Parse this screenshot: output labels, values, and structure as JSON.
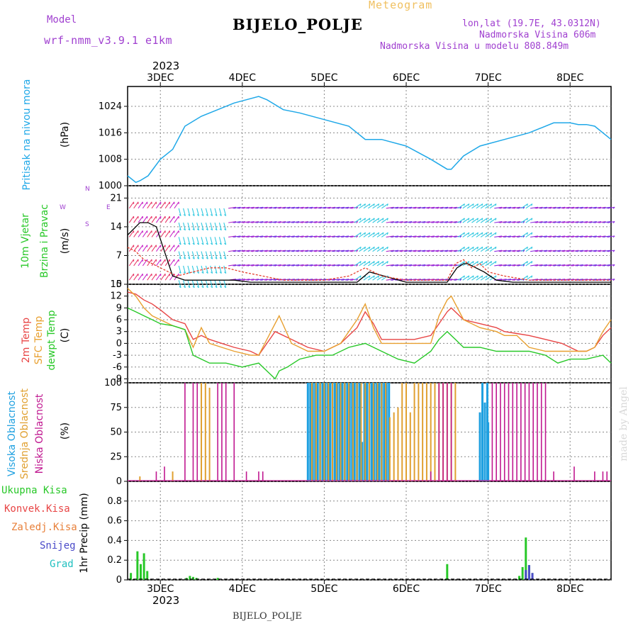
{
  "header": {
    "meteogram_label": "Meteogram",
    "model_label": "Model",
    "model_name": "wrf-nmm_v3.9.1  e1km",
    "title": "BIJELO_POLJE",
    "lonlat": "lon,lat (19.7E, 43.0312N)",
    "altitude": "Nadmorska Visina 606m",
    "model_altitude": "Nadmorska Visina u modelu 808.849m",
    "footer_station": "BIJELO_POLJE",
    "credit": "made by Angel"
  },
  "time_axis": {
    "year": "2023",
    "labels": [
      "3DEC",
      "4DEC",
      "5DEC",
      "6DEC",
      "7DEC",
      "8DEC"
    ]
  },
  "panel_labels": {
    "pressure": [
      "Pritisak na nivou mora",
      "(hPa)"
    ],
    "wind": [
      "10m Vjetar",
      "Brzina i Pravac",
      "(m/s)"
    ],
    "wind_compass": [
      "N",
      "S",
      "W",
      "E"
    ],
    "temp": [
      "2m Temp",
      "SFC Temp",
      "dewpt Temp",
      "(C)"
    ],
    "cloud": [
      "Visoka Oblacnost",
      "Srednja Oblacnost",
      "Niska Oblacnost",
      "(%)"
    ],
    "precip": [
      "Ukupna Kisa",
      "Konvek.Kisa",
      "Zaledj.Kisa",
      "Snijeg",
      "Grad",
      "1hr Precip (mm)"
    ]
  },
  "colors": {
    "pressure": "#1fa8e8",
    "gust": "#000000",
    "wind_speed": "#e6402e",
    "temp2m": "#e84545",
    "sfc": "#e8a030",
    "dewpt": "#28c828",
    "high_cloud": "#1ea0e0",
    "mid_cloud": "#e0a030",
    "low_cloud": "#c01890",
    "precip_total": "#28c828",
    "precip_snow": "#4a4ac8"
  },
  "chart_data": [
    {
      "type": "line",
      "title": "Pritisak na nivou mora",
      "ylabel": "(hPa)",
      "ylim": [
        1000,
        1030
      ],
      "yticks": [
        "1000",
        "1008",
        "1016",
        "1024"
      ],
      "xlim_days": [
        2.6,
        8.5
      ],
      "x_days": [
        2.6,
        2.7,
        2.75,
        2.85,
        3.0,
        3.15,
        3.3,
        3.5,
        3.7,
        3.9,
        4.05,
        4.2,
        4.3,
        4.5,
        4.7,
        5.0,
        5.3,
        5.5,
        5.7,
        6.0,
        6.3,
        6.5,
        6.55,
        6.7,
        6.9,
        7.2,
        7.5,
        7.8,
        8.0,
        8.1,
        8.2,
        8.3,
        8.5
      ],
      "y": [
        1003,
        1001,
        1001.5,
        1003,
        1008,
        1011,
        1018,
        1021,
        1023,
        1025,
        1026,
        1027,
        1026,
        1023,
        1022,
        1020,
        1018,
        1014,
        1014,
        1012,
        1008,
        1005,
        1005,
        1009,
        1012,
        1014,
        1016,
        1019,
        1019,
        1018.5,
        1018.5,
        1018,
        1014
      ]
    },
    {
      "type": "line",
      "title": "10m Vjetar Brzina i Pravac",
      "ylabel": "(m/s)",
      "ylim": [
        0,
        24
      ],
      "yticks": [
        "0",
        "7",
        "14",
        "21"
      ],
      "series": [
        {
          "name": "gust",
          "x_days": [
            2.6,
            2.7,
            2.75,
            2.85,
            2.95,
            3.05,
            3.15,
            3.3,
            3.5,
            3.7,
            3.9,
            4.1,
            4.5,
            5.0,
            5.4,
            5.55,
            6.0,
            6.3,
            6.5,
            6.55,
            6.62,
            6.7,
            6.75,
            6.85,
            6.95,
            7.1,
            7.3,
            7.5,
            8.0,
            8.5
          ],
          "y": [
            12,
            14,
            15,
            15,
            14,
            8,
            2,
            1,
            1,
            1,
            1,
            0.5,
            0.5,
            0.5,
            0.5,
            3,
            0.5,
            0.5,
            0.5,
            2,
            4,
            5,
            5,
            4,
            3,
            1,
            0.5,
            0.5,
            0.5,
            0.5
          ]
        },
        {
          "name": "speed",
          "x_days": [
            2.6,
            2.7,
            2.8,
            2.9,
            3.0,
            3.2,
            3.4,
            3.6,
            3.8,
            4.0,
            4.5,
            5.0,
            5.3,
            5.5,
            5.7,
            6.0,
            6.3,
            6.5,
            6.6,
            6.7,
            6.8,
            6.9,
            7.0,
            7.2,
            7.5,
            8.0,
            8.5
          ],
          "y": [
            9,
            8,
            6,
            5,
            4,
            2,
            3,
            4,
            4,
            3,
            1,
            1,
            2,
            4,
            2,
            1,
            1,
            1,
            5,
            6,
            4,
            5,
            3,
            2,
            1,
            1,
            1
          ]
        }
      ]
    },
    {
      "type": "line",
      "title": "2m Temp / SFC Temp / dewpt Temp",
      "ylabel": "(C)",
      "ylim": [
        -10,
        15
      ],
      "yticks": [
        "-9",
        "-6",
        "-3",
        "0",
        "3",
        "6",
        "9",
        "12",
        "15"
      ],
      "series": [
        {
          "name": "2m Temp",
          "x_days": [
            2.6,
            2.7,
            2.8,
            2.9,
            3.0,
            3.15,
            3.3,
            3.4,
            3.5,
            3.6,
            3.75,
            3.9,
            4.1,
            4.2,
            4.3,
            4.4,
            4.6,
            4.8,
            5.0,
            5.2,
            5.4,
            5.5,
            5.6,
            5.7,
            5.9,
            6.1,
            6.3,
            6.4,
            6.5,
            6.55,
            6.7,
            6.9,
            7.1,
            7.2,
            7.35,
            7.5,
            7.7,
            7.9,
            8.1,
            8.2,
            8.3,
            8.4,
            8.5
          ],
          "y": [
            13,
            12.5,
            11,
            10,
            8.5,
            6,
            5,
            1,
            2,
            1,
            0,
            -1,
            -2,
            -3,
            0,
            3,
            1,
            -1,
            -2,
            0,
            4,
            8,
            5,
            1,
            1,
            1,
            2,
            5,
            8,
            9,
            6,
            5,
            4,
            3,
            2.5,
            2,
            1,
            0,
            -2,
            -2,
            -1,
            2,
            4
          ]
        },
        {
          "name": "SFC Temp",
          "x_days": [
            2.6,
            2.7,
            2.8,
            2.9,
            3.0,
            3.15,
            3.3,
            3.4,
            3.5,
            3.6,
            3.75,
            3.9,
            4.1,
            4.2,
            4.3,
            4.45,
            4.6,
            4.8,
            5.0,
            5.2,
            5.4,
            5.5,
            5.6,
            5.7,
            5.9,
            6.1,
            6.3,
            6.4,
            6.5,
            6.55,
            6.7,
            6.9,
            7.1,
            7.2,
            7.35,
            7.5,
            7.7,
            7.9,
            8.1,
            8.2,
            8.3,
            8.4,
            8.5
          ],
          "y": [
            14,
            12,
            9,
            7,
            6,
            4.5,
            3.5,
            -1,
            4,
            0,
            -1,
            -2,
            -3,
            -3,
            1,
            7,
            0,
            -2,
            -2,
            0,
            6,
            10,
            4,
            0,
            0,
            0,
            0,
            7,
            11,
            12,
            6,
            4,
            3,
            2,
            2,
            -1,
            -2,
            -2,
            -2,
            -2,
            -1,
            3,
            6
          ]
        },
        {
          "name": "dewpt Temp",
          "x_days": [
            2.6,
            2.7,
            2.8,
            2.9,
            3.0,
            3.15,
            3.3,
            3.4,
            3.6,
            3.8,
            4.0,
            4.2,
            4.4,
            4.45,
            4.55,
            4.7,
            4.9,
            5.1,
            5.3,
            5.5,
            5.7,
            5.9,
            6.1,
            6.3,
            6.4,
            6.5,
            6.6,
            6.7,
            6.9,
            7.1,
            7.3,
            7.5,
            7.7,
            7.85,
            8.0,
            8.2,
            8.4,
            8.5
          ],
          "y": [
            9,
            8,
            7,
            6,
            5,
            4.5,
            3.5,
            -3,
            -5,
            -5,
            -6,
            -5,
            -9,
            -7,
            -6,
            -4,
            -3,
            -3,
            -1,
            0,
            -2,
            -4,
            -5,
            -2,
            1,
            3,
            1,
            -1,
            -1,
            -2,
            -2,
            -2,
            -3,
            -5,
            -4,
            -4,
            -3,
            -5
          ]
        }
      ]
    },
    {
      "type": "bar",
      "title": "Oblacnost",
      "ylabel": "(%)",
      "ylim": [
        0,
        100
      ],
      "yticks": [
        "0",
        "25",
        "50",
        "75",
        "100"
      ],
      "series": [
        {
          "name": "Visoka Oblacnost",
          "x_days": [
            4.8,
            4.83,
            4.86,
            4.89,
            4.92,
            4.95,
            4.98,
            5.01,
            5.04,
            5.07,
            5.1,
            5.13,
            5.16,
            5.19,
            5.22,
            5.25,
            5.28,
            5.31,
            5.34,
            5.37,
            5.4,
            5.43,
            5.46,
            5.49,
            5.52,
            5.55,
            5.58,
            5.61,
            5.64,
            5.67,
            5.7,
            5.73,
            5.76,
            5.79,
            6.9,
            6.93,
            6.96,
            6.99,
            7.0
          ],
          "y": [
            100,
            100,
            100,
            100,
            100,
            100,
            100,
            100,
            100,
            100,
            100,
            100,
            100,
            100,
            100,
            100,
            100,
            100,
            100,
            100,
            100,
            100,
            40,
            100,
            100,
            100,
            100,
            100,
            100,
            100,
            100,
            100,
            100,
            100,
            70,
            100,
            80,
            100,
            60
          ]
        },
        {
          "name": "Srednja Oblacnost",
          "x_days": [
            2.75,
            3.15,
            3.5,
            3.55,
            3.6,
            4.85,
            4.9,
            4.95,
            5.0,
            5.05,
            5.1,
            5.15,
            5.2,
            5.25,
            5.3,
            5.35,
            5.4,
            5.45,
            5.5,
            5.55,
            5.6,
            5.65,
            5.7,
            5.75,
            5.8,
            5.85,
            5.9,
            5.95,
            6.0,
            6.05,
            6.1,
            6.15,
            6.2,
            6.25,
            6.3,
            6.35,
            6.4,
            6.45,
            6.5,
            6.55,
            6.6
          ],
          "y": [
            5,
            10,
            100,
            100,
            95,
            100,
            100,
            100,
            100,
            100,
            100,
            100,
            100,
            100,
            100,
            100,
            100,
            100,
            100,
            100,
            100,
            100,
            100,
            100,
            65,
            70,
            75,
            100,
            100,
            70,
            100,
            100,
            100,
            100,
            100,
            100,
            100,
            100,
            100,
            100,
            100
          ]
        },
        {
          "name": "Niska Oblacnost",
          "x_days": [
            2.95,
            3.05,
            3.3,
            3.4,
            3.45,
            3.7,
            3.75,
            3.8,
            3.9,
            4.05,
            4.2,
            4.25,
            6.3,
            6.4,
            6.45,
            6.5,
            6.55,
            7.05,
            7.1,
            7.15,
            7.2,
            7.25,
            7.3,
            7.35,
            7.4,
            7.45,
            7.5,
            7.55,
            7.6,
            7.65,
            7.7,
            7.8,
            8.05,
            8.3,
            8.4,
            8.45
          ],
          "y": [
            10,
            15,
            100,
            100,
            100,
            100,
            100,
            100,
            100,
            10,
            10,
            10,
            10,
            100,
            100,
            100,
            100,
            100,
            100,
            100,
            100,
            100,
            100,
            100,
            100,
            100,
            100,
            100,
            100,
            100,
            100,
            10,
            15,
            10,
            10,
            10
          ]
        }
      ]
    },
    {
      "type": "bar",
      "title": "1hr Precip",
      "ylabel": "1hr Precip (mm)",
      "ylim": [
        0,
        1.0
      ],
      "yticks": [
        "0",
        "0.2",
        "0.4",
        "0.6",
        "0.8"
      ],
      "series": [
        {
          "name": "Ukupna Kisa",
          "x_days": [
            2.64,
            2.72,
            2.76,
            2.8,
            2.84,
            3.32,
            3.36,
            3.4,
            3.44,
            3.7,
            6.5,
            7.38,
            7.42,
            7.46,
            7.5,
            7.54
          ],
          "y": [
            0.07,
            0.29,
            0.16,
            0.27,
            0.09,
            0.02,
            0.04,
            0.03,
            0.02,
            0.02,
            0.16,
            0.04,
            0.13,
            0.43,
            0.15,
            0.07
          ]
        },
        {
          "name": "Snijeg",
          "x_days": [
            7.46,
            7.5,
            7.54
          ],
          "y": [
            0.1,
            0.15,
            0.07
          ]
        }
      ]
    }
  ]
}
